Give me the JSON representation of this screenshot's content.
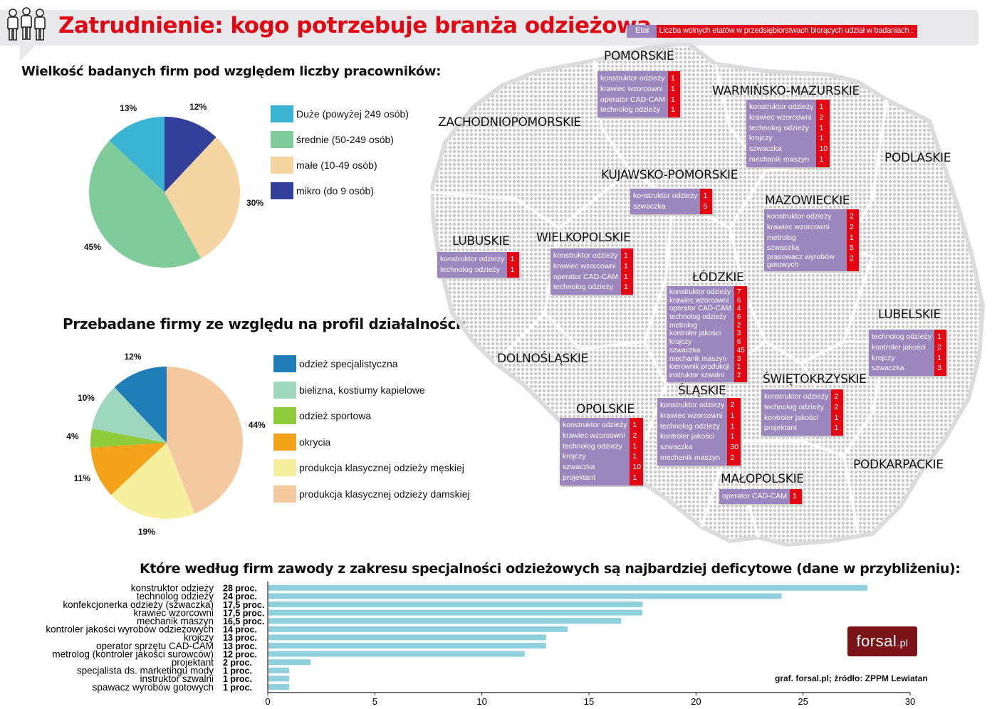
{
  "header": {
    "title": "Zatrudnienie: kogo potrzebuje branża odzieżowa",
    "legend_etat": "Etat",
    "legend_desc": "Liczba wolnych etatów w przedsiębiorstwach biorących udział w badaniach :"
  },
  "chart_data": [
    {
      "type": "pie",
      "title": "Wielkość badanych firm pod względem liczby pracowników:",
      "slices": [
        {
          "label": "Duże (powyżej 249 osób)",
          "value": 13,
          "pct_label": "13%",
          "color": "#3bb3d2"
        },
        {
          "label": "średnie (50-249 osób)",
          "value": 45,
          "pct_label": "45%",
          "color": "#7fcb9a"
        },
        {
          "label": "małe (10-49 osób)",
          "value": 30,
          "pct_label": "30%",
          "color": "#f5d5a2"
        },
        {
          "label": "mikro (do 9 osób)",
          "value": 12,
          "pct_label": "12%",
          "color": "#33409a"
        }
      ],
      "draw_order": [
        3,
        2,
        1,
        0
      ],
      "legend": "right"
    },
    {
      "type": "pie",
      "title": "Przebadane firmy ze względu na profil działalności:",
      "slices": [
        {
          "label": "odzież specjalistyczna",
          "value": 12,
          "pct_label": "12%",
          "color": "#1f7db8"
        },
        {
          "label": "bielizna, kostiumy kapielowe",
          "value": 10,
          "pct_label": "10%",
          "color": "#9dd8bd"
        },
        {
          "label": "odzież sportowa",
          "value": 4,
          "pct_label": "4%",
          "color": "#8fcb3a"
        },
        {
          "label": "okrycia",
          "value": 11,
          "pct_label": "11%",
          "color": "#f5a21b"
        },
        {
          "label": "produkcja klasycznej odzieży męskiej",
          "value": 19,
          "pct_label": "19%",
          "color": "#f6f09e"
        },
        {
          "label": "produkcja klasycznej odzieży damskiej",
          "value": 44,
          "pct_label": "44%",
          "color": "#f5c9a0"
        }
      ],
      "draw_order": [
        5,
        4,
        3,
        2,
        1,
        0
      ],
      "legend": "right"
    },
    {
      "type": "bar",
      "orientation": "horizontal",
      "title": "Które według firm zawody z zakresu specjalności odzieżowych są najbardziej deficytowe (dane w przybliżeniu):",
      "categories": [
        "konstruktor odzieży",
        "technolog odzieży",
        "konfekcjonerka odzieży (szwaczka)",
        "krawiec wzorcowni",
        "mechanik maszyn",
        "kontroler jakości wyrobów odzieżowych",
        "krojczy",
        "operator sprzętu CAD-CAM",
        "metrolog (kontroler jakości surowców)",
        "projektant",
        "specjalista ds. marketingu mody",
        "instruktor szwalni",
        "spawacz wyrobów gotowych"
      ],
      "values": [
        28,
        24,
        17.5,
        17.5,
        16.5,
        14,
        13,
        13,
        12,
        2,
        1,
        1,
        1
      ],
      "value_labels": [
        "28 proc.",
        "24 proc.",
        "17,5 proc.",
        "17,5 proc.",
        "16,5 proc.",
        "14 proc.",
        "13 proc.",
        "13 proc.",
        "12 proc.",
        "2 proc.",
        "1 proc.",
        "1 proc.",
        "1 proc."
      ],
      "xlim": [
        0,
        30
      ],
      "xticks": [
        0,
        5,
        10,
        15,
        20,
        25,
        30
      ],
      "bar_color": "#8fd0dc",
      "grid": false
    }
  ],
  "regions": [
    {
      "name": "POMORSKIE",
      "jobs": [
        {
          "job": "konstruktor odzieży",
          "n": "1"
        },
        {
          "job": "krawiec wzorcowni",
          "n": "1"
        },
        {
          "job": "operator CAD-CAM",
          "n": "1"
        },
        {
          "job": "technolog odzieży",
          "n": "1"
        }
      ]
    },
    {
      "name": "WARMIŃSKO-MAZURSKIE",
      "jobs": [
        {
          "job": "konstruktor odzieży",
          "n": "1"
        },
        {
          "job": "krawiec wzorcowni",
          "n": "2"
        },
        {
          "job": "technolog odzieży",
          "n": "1"
        },
        {
          "job": "krojczy",
          "n": "1"
        },
        {
          "job": "szwaczka",
          "n": "10"
        },
        {
          "job": "mechanik maszyn",
          "n": "1"
        }
      ]
    },
    {
      "name": "ZACHODNIOPOMORSKIE",
      "jobs": []
    },
    {
      "name": "PODLASKIE",
      "jobs": []
    },
    {
      "name": "KUJAWSKO-POMORSKIE",
      "jobs": [
        {
          "job": "konstruktor odzieży",
          "n": "1"
        },
        {
          "job": "szwaczka",
          "n": "5"
        }
      ]
    },
    {
      "name": "MAZOWIECKIE",
      "jobs": [
        {
          "job": "konstruktor odzieży",
          "n": "2"
        },
        {
          "job": "krawiec wzorcowni",
          "n": "2"
        },
        {
          "job": "metrolog",
          "n": "1"
        },
        {
          "job": "szwaczka",
          "n": "5"
        },
        {
          "job": "prasowacz wyrobów gotowych",
          "n": "2"
        }
      ]
    },
    {
      "name": "LUBUSKIE",
      "jobs": [
        {
          "job": "konstruktor odzieży",
          "n": "1"
        },
        {
          "job": "technolog odzieży",
          "n": "1"
        }
      ]
    },
    {
      "name": "WIELKOPOLSKIE",
      "jobs": [
        {
          "job": "konstruktor odzieży",
          "n": "1"
        },
        {
          "job": "krawiec wzorcowni",
          "n": "1"
        },
        {
          "job": "operator CAD-CAM",
          "n": "1"
        },
        {
          "job": "technolog odzieży",
          "n": "1"
        }
      ]
    },
    {
      "name": "ŁÓDZKIE",
      "jobs": [
        {
          "job": "konstruktor odzieży",
          "n": "7"
        },
        {
          "job": "krawiec wzorcowni",
          "n": "6"
        },
        {
          "job": "operator CAD-CAM",
          "n": "4"
        },
        {
          "job": "technolog odzieży",
          "n": "6"
        },
        {
          "job": "metrolog",
          "n": "2"
        },
        {
          "job": "kontroler jakości",
          "n": "3"
        },
        {
          "job": "krojczy",
          "n": "6"
        },
        {
          "job": "szwaczka",
          "n": "45"
        },
        {
          "job": "mechanik maszyn",
          "n": "3"
        },
        {
          "job": "kierownik produkcji",
          "n": "1"
        },
        {
          "job": "instruktor szwalni",
          "n": "2"
        }
      ]
    },
    {
      "name": "LUBELSKIE",
      "jobs": [
        {
          "job": "technolog odzieży",
          "n": "1"
        },
        {
          "job": "kontroler jakości",
          "n": "2"
        },
        {
          "job": "krojczy",
          "n": "1"
        },
        {
          "job": "szwaczka",
          "n": "3"
        }
      ]
    },
    {
      "name": "DOLNOŚLĄSKIE",
      "jobs": []
    },
    {
      "name": "ŚWIĘTOKRZYSKIE",
      "jobs": [
        {
          "job": "konstruktor odzieży",
          "n": "2"
        },
        {
          "job": "technolog odzieży",
          "n": "2"
        },
        {
          "job": "kontroler jakości",
          "n": "1"
        },
        {
          "job": "projektant",
          "n": "1"
        }
      ]
    },
    {
      "name": "ŚLĄSKIE",
      "jobs": [
        {
          "job": "konstruktor odzieży",
          "n": "2"
        },
        {
          "job": "krawiec wzorcowni",
          "n": "1"
        },
        {
          "job": "technolog odzieży",
          "n": "1"
        },
        {
          "job": "kontroler jakości",
          "n": "1"
        },
        {
          "job": "szwaczka",
          "n": "30"
        },
        {
          "job": "mechanik maszyn",
          "n": "2"
        }
      ]
    },
    {
      "name": "OPOLSKIE",
      "jobs": [
        {
          "job": "konstruktor odzieży",
          "n": "1"
        },
        {
          "job": "krawiec wzorcowni",
          "n": "2"
        },
        {
          "job": "technolog odzieży",
          "n": "1"
        },
        {
          "job": "krojczy",
          "n": "1"
        },
        {
          "job": "szwaczka",
          "n": "10"
        },
        {
          "job": "projektant",
          "n": "1"
        }
      ]
    },
    {
      "name": "PODKARPACKIE",
      "jobs": []
    },
    {
      "name": "MAŁOPOLSKIE",
      "jobs": [
        {
          "job": "operator CAD-CAM",
          "n": "1"
        }
      ]
    }
  ],
  "footer": {
    "credit": "graf. forsal.pl;   źródło: ZPPM Lewiatan",
    "logo_main": "forsal",
    "logo_sub": ".pl"
  }
}
